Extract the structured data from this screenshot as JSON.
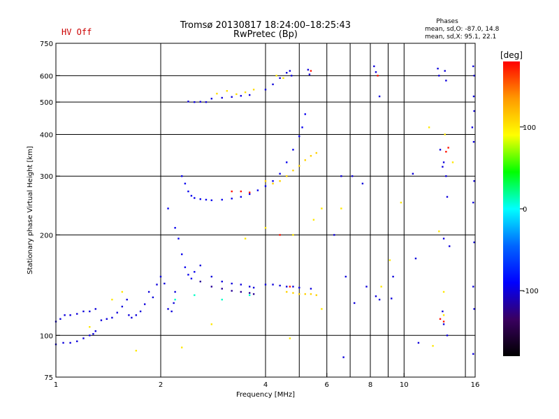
{
  "chart_data": {
    "type": "scatter",
    "title": "Tromsø 20130817 18:24:00–18:25:43",
    "subtitle": "RwPretec (Bp)",
    "status_label": "HV Off",
    "xlabel": "Frequency [MHz]",
    "ylabel": "Stationary phase Virtual Height [km]",
    "x_scale": "log",
    "y_scale": "log",
    "xlim": [
      1,
      16
    ],
    "ylim": [
      75,
      750
    ],
    "x_ticks": [
      1,
      2,
      4,
      6,
      8,
      10,
      16
    ],
    "y_ticks": [
      75,
      100,
      200,
      300,
      400,
      500,
      600,
      750
    ],
    "x_gridlines": [
      2,
      4,
      5,
      6,
      7,
      8,
      9,
      10,
      15
    ],
    "y_gridlines": [
      100,
      200,
      300,
      400,
      500,
      600
    ],
    "grid": true,
    "phases_info": {
      "title": "Phases",
      "line1": "mean, sd,O: -87.0, 14.8",
      "line2": "mean, sd,X:  95.1, 22.1"
    },
    "colorbar": {
      "label": "[deg]",
      "ticks": [
        100,
        0,
        -100
      ],
      "range": [
        -180,
        180
      ],
      "stops": [
        "#000000",
        "#3a0060",
        "#0000ff",
        "#0066ff",
        "#00ffff",
        "#00ff00",
        "#ffff00",
        "#ff9900",
        "#ff0000"
      ]
    },
    "series": [
      {
        "points": [
          [
            1.0,
            94
          ],
          [
            1.05,
            95
          ],
          [
            1.1,
            95
          ],
          [
            1.15,
            96
          ],
          [
            1.2,
            98
          ],
          [
            1.25,
            100
          ],
          [
            1.28,
            101
          ],
          [
            1.3,
            103
          ]
        ],
        "phase": -100
      },
      {
        "points": [
          [
            1.0,
            110
          ],
          [
            1.03,
            112
          ],
          [
            1.06,
            115
          ],
          [
            1.1,
            115
          ],
          [
            1.15,
            116
          ],
          [
            1.2,
            118
          ],
          [
            1.25,
            118
          ],
          [
            1.3,
            120
          ],
          [
            1.35,
            111
          ],
          [
            1.4,
            112
          ],
          [
            1.45,
            113
          ],
          [
            1.5,
            117
          ],
          [
            1.55,
            122
          ],
          [
            1.6,
            128
          ],
          [
            1.62,
            115
          ],
          [
            1.65,
            113
          ],
          [
            1.7,
            115
          ],
          [
            1.75,
            118
          ],
          [
            1.8,
            124
          ],
          [
            1.85,
            135
          ],
          [
            1.9,
            130
          ],
          [
            1.95,
            142
          ],
          [
            2.0,
            150
          ],
          [
            2.05,
            143
          ],
          [
            2.1,
            120
          ],
          [
            2.15,
            118
          ],
          [
            2.18,
            125
          ],
          [
            2.2,
            135
          ]
        ],
        "phase": -100
      },
      {
        "points": [
          [
            2.1,
            240
          ],
          [
            2.2,
            210
          ],
          [
            2.25,
            195
          ],
          [
            2.3,
            175
          ],
          [
            2.35,
            160
          ],
          [
            2.4,
            152
          ],
          [
            2.45,
            148
          ],
          [
            2.5,
            155
          ]
        ],
        "phase": -95
      },
      {
        "points": [
          [
            2.3,
            300
          ],
          [
            2.35,
            285
          ],
          [
            2.4,
            270
          ],
          [
            2.45,
            262
          ],
          [
            2.5,
            258
          ],
          [
            2.6,
            256
          ],
          [
            2.7,
            255
          ],
          [
            2.8,
            254
          ],
          [
            3.0,
            255
          ],
          [
            3.2,
            257
          ],
          [
            3.4,
            260
          ],
          [
            3.6,
            265
          ],
          [
            3.8,
            272
          ],
          [
            4.0,
            280
          ],
          [
            4.2,
            290
          ],
          [
            4.4,
            305
          ],
          [
            4.6,
            330
          ],
          [
            4.8,
            360
          ],
          [
            5.0,
            395
          ],
          [
            5.1,
            420
          ],
          [
            5.2,
            460
          ]
        ],
        "phase": -95
      },
      {
        "points": [
          [
            4.0,
            290
          ],
          [
            4.2,
            285
          ],
          [
            4.4,
            290
          ],
          [
            4.6,
            300
          ],
          [
            4.8,
            312
          ],
          [
            5.0,
            322
          ],
          [
            5.2,
            335
          ],
          [
            5.4,
            345
          ],
          [
            5.6,
            352
          ]
        ],
        "phase": 110
      },
      {
        "points": [
          [
            2.6,
            162
          ],
          [
            2.8,
            150
          ],
          [
            3.0,
            145
          ],
          [
            3.2,
            143
          ],
          [
            3.4,
            142
          ],
          [
            3.6,
            140
          ],
          [
            3.7,
            139
          ]
        ],
        "phase": -100
      },
      {
        "points": [
          [
            2.6,
            145
          ],
          [
            2.8,
            140
          ],
          [
            3.0,
            138
          ],
          [
            3.2,
            136
          ],
          [
            3.4,
            135
          ],
          [
            3.6,
            134
          ],
          [
            3.7,
            133
          ]
        ],
        "phase": -120
      },
      {
        "points": [
          [
            4.0,
            142
          ],
          [
            4.2,
            142
          ],
          [
            4.4,
            141
          ],
          [
            4.6,
            140
          ],
          [
            4.8,
            140
          ],
          [
            5.0,
            139
          ],
          [
            5.4,
            138
          ]
        ],
        "phase": -100
      },
      {
        "points": [
          [
            4.6,
            135
          ],
          [
            4.8,
            134
          ],
          [
            5.0,
            133
          ],
          [
            5.2,
            133
          ],
          [
            5.4,
            133
          ],
          [
            5.6,
            132
          ]
        ],
        "phase": 110
      },
      {
        "points": [
          [
            2.4,
            502
          ],
          [
            2.5,
            500
          ],
          [
            2.6,
            501
          ],
          [
            2.7,
            500
          ],
          [
            2.8,
            512
          ],
          [
            3.0,
            515
          ],
          [
            3.2,
            518
          ],
          [
            3.4,
            522
          ],
          [
            3.6,
            525
          ],
          [
            4.0,
            545
          ],
          [
            4.2,
            565
          ],
          [
            4.4,
            590
          ],
          [
            4.6,
            612
          ]
        ],
        "phase": -100
      },
      {
        "points": [
          [
            2.9,
            530
          ],
          [
            3.1,
            540
          ],
          [
            3.3,
            528
          ],
          [
            3.5,
            535
          ],
          [
            3.7,
            545
          ]
        ],
        "phase": 105
      },
      {
        "points": [
          [
            4.7,
            620
          ],
          [
            4.75,
            600
          ],
          [
            5.3,
            625
          ],
          [
            5.35,
            605
          ],
          [
            6.6,
            300
          ],
          [
            7.1,
            300
          ],
          [
            7.6,
            285
          ],
          [
            8.2,
            640
          ],
          [
            8.3,
            615
          ],
          [
            8.5,
            520
          ],
          [
            8.3,
            131
          ],
          [
            8.5,
            128
          ],
          [
            6.7,
            86
          ],
          [
            9.2,
            129
          ],
          [
            10.6,
            305
          ],
          [
            10.8,
            170
          ],
          [
            11.0,
            95
          ],
          [
            12.5,
            630
          ],
          [
            12.6,
            600
          ],
          [
            13.1,
            620
          ],
          [
            13.2,
            580
          ],
          [
            12.7,
            360
          ],
          [
            12.9,
            320
          ],
          [
            13.2,
            300
          ],
          [
            13.0,
            330
          ],
          [
            13.3,
            260
          ],
          [
            13.0,
            195
          ],
          [
            13.5,
            185
          ],
          [
            12.9,
            118
          ],
          [
            13.0,
            108
          ],
          [
            13.3,
            100
          ],
          [
            15.8,
            640
          ],
          [
            15.9,
            600
          ],
          [
            15.85,
            520
          ],
          [
            15.9,
            470
          ],
          [
            15.7,
            420
          ],
          [
            15.85,
            380
          ],
          [
            15.9,
            290
          ],
          [
            15.8,
            250
          ],
          [
            15.9,
            190
          ],
          [
            15.8,
            140
          ],
          [
            15.9,
            120
          ],
          [
            15.8,
            88
          ],
          [
            6.3,
            200
          ],
          [
            6.8,
            150
          ],
          [
            7.2,
            125
          ],
          [
            7.8,
            140
          ],
          [
            9.3,
            150
          ]
        ],
        "phase": -100
      },
      {
        "points": [
          [
            4.3,
            600
          ],
          [
            4.5,
            590
          ],
          [
            1.7,
            90
          ],
          [
            1.25,
            106
          ],
          [
            1.45,
            128
          ],
          [
            1.55,
            135
          ],
          [
            2.3,
            92
          ],
          [
            2.8,
            108
          ],
          [
            3.5,
            195
          ],
          [
            4.0,
            210
          ],
          [
            4.8,
            200
          ],
          [
            5.5,
            222
          ],
          [
            5.8,
            240
          ],
          [
            6.6,
            240
          ],
          [
            11.8,
            420
          ],
          [
            13.1,
            400
          ],
          [
            13.8,
            330
          ],
          [
            12.6,
            205
          ],
          [
            13.0,
            135
          ],
          [
            13.0,
            115
          ],
          [
            12.1,
            93
          ],
          [
            9.1,
            168
          ],
          [
            9.8,
            250
          ],
          [
            8.6,
            140
          ],
          [
            4.7,
            98
          ],
          [
            5.8,
            120
          ]
        ],
        "phase": 100
      },
      {
        "points": [
          [
            3.2,
            270
          ],
          [
            3.4,
            270
          ],
          [
            3.6,
            268
          ],
          [
            5.4,
            620
          ],
          [
            8.4,
            600
          ],
          [
            13.2,
            355
          ],
          [
            13.4,
            365
          ],
          [
            13.0,
            110
          ],
          [
            12.7,
            112
          ],
          [
            4.4,
            200
          ],
          [
            4.7,
            140
          ]
        ],
        "phase": 175
      },
      {
        "points": [
          [
            2.2,
            128
          ],
          [
            3.0,
            128
          ],
          [
            2.5,
            132
          ],
          [
            3.6,
            132
          ]
        ],
        "phase": 10
      }
    ]
  }
}
